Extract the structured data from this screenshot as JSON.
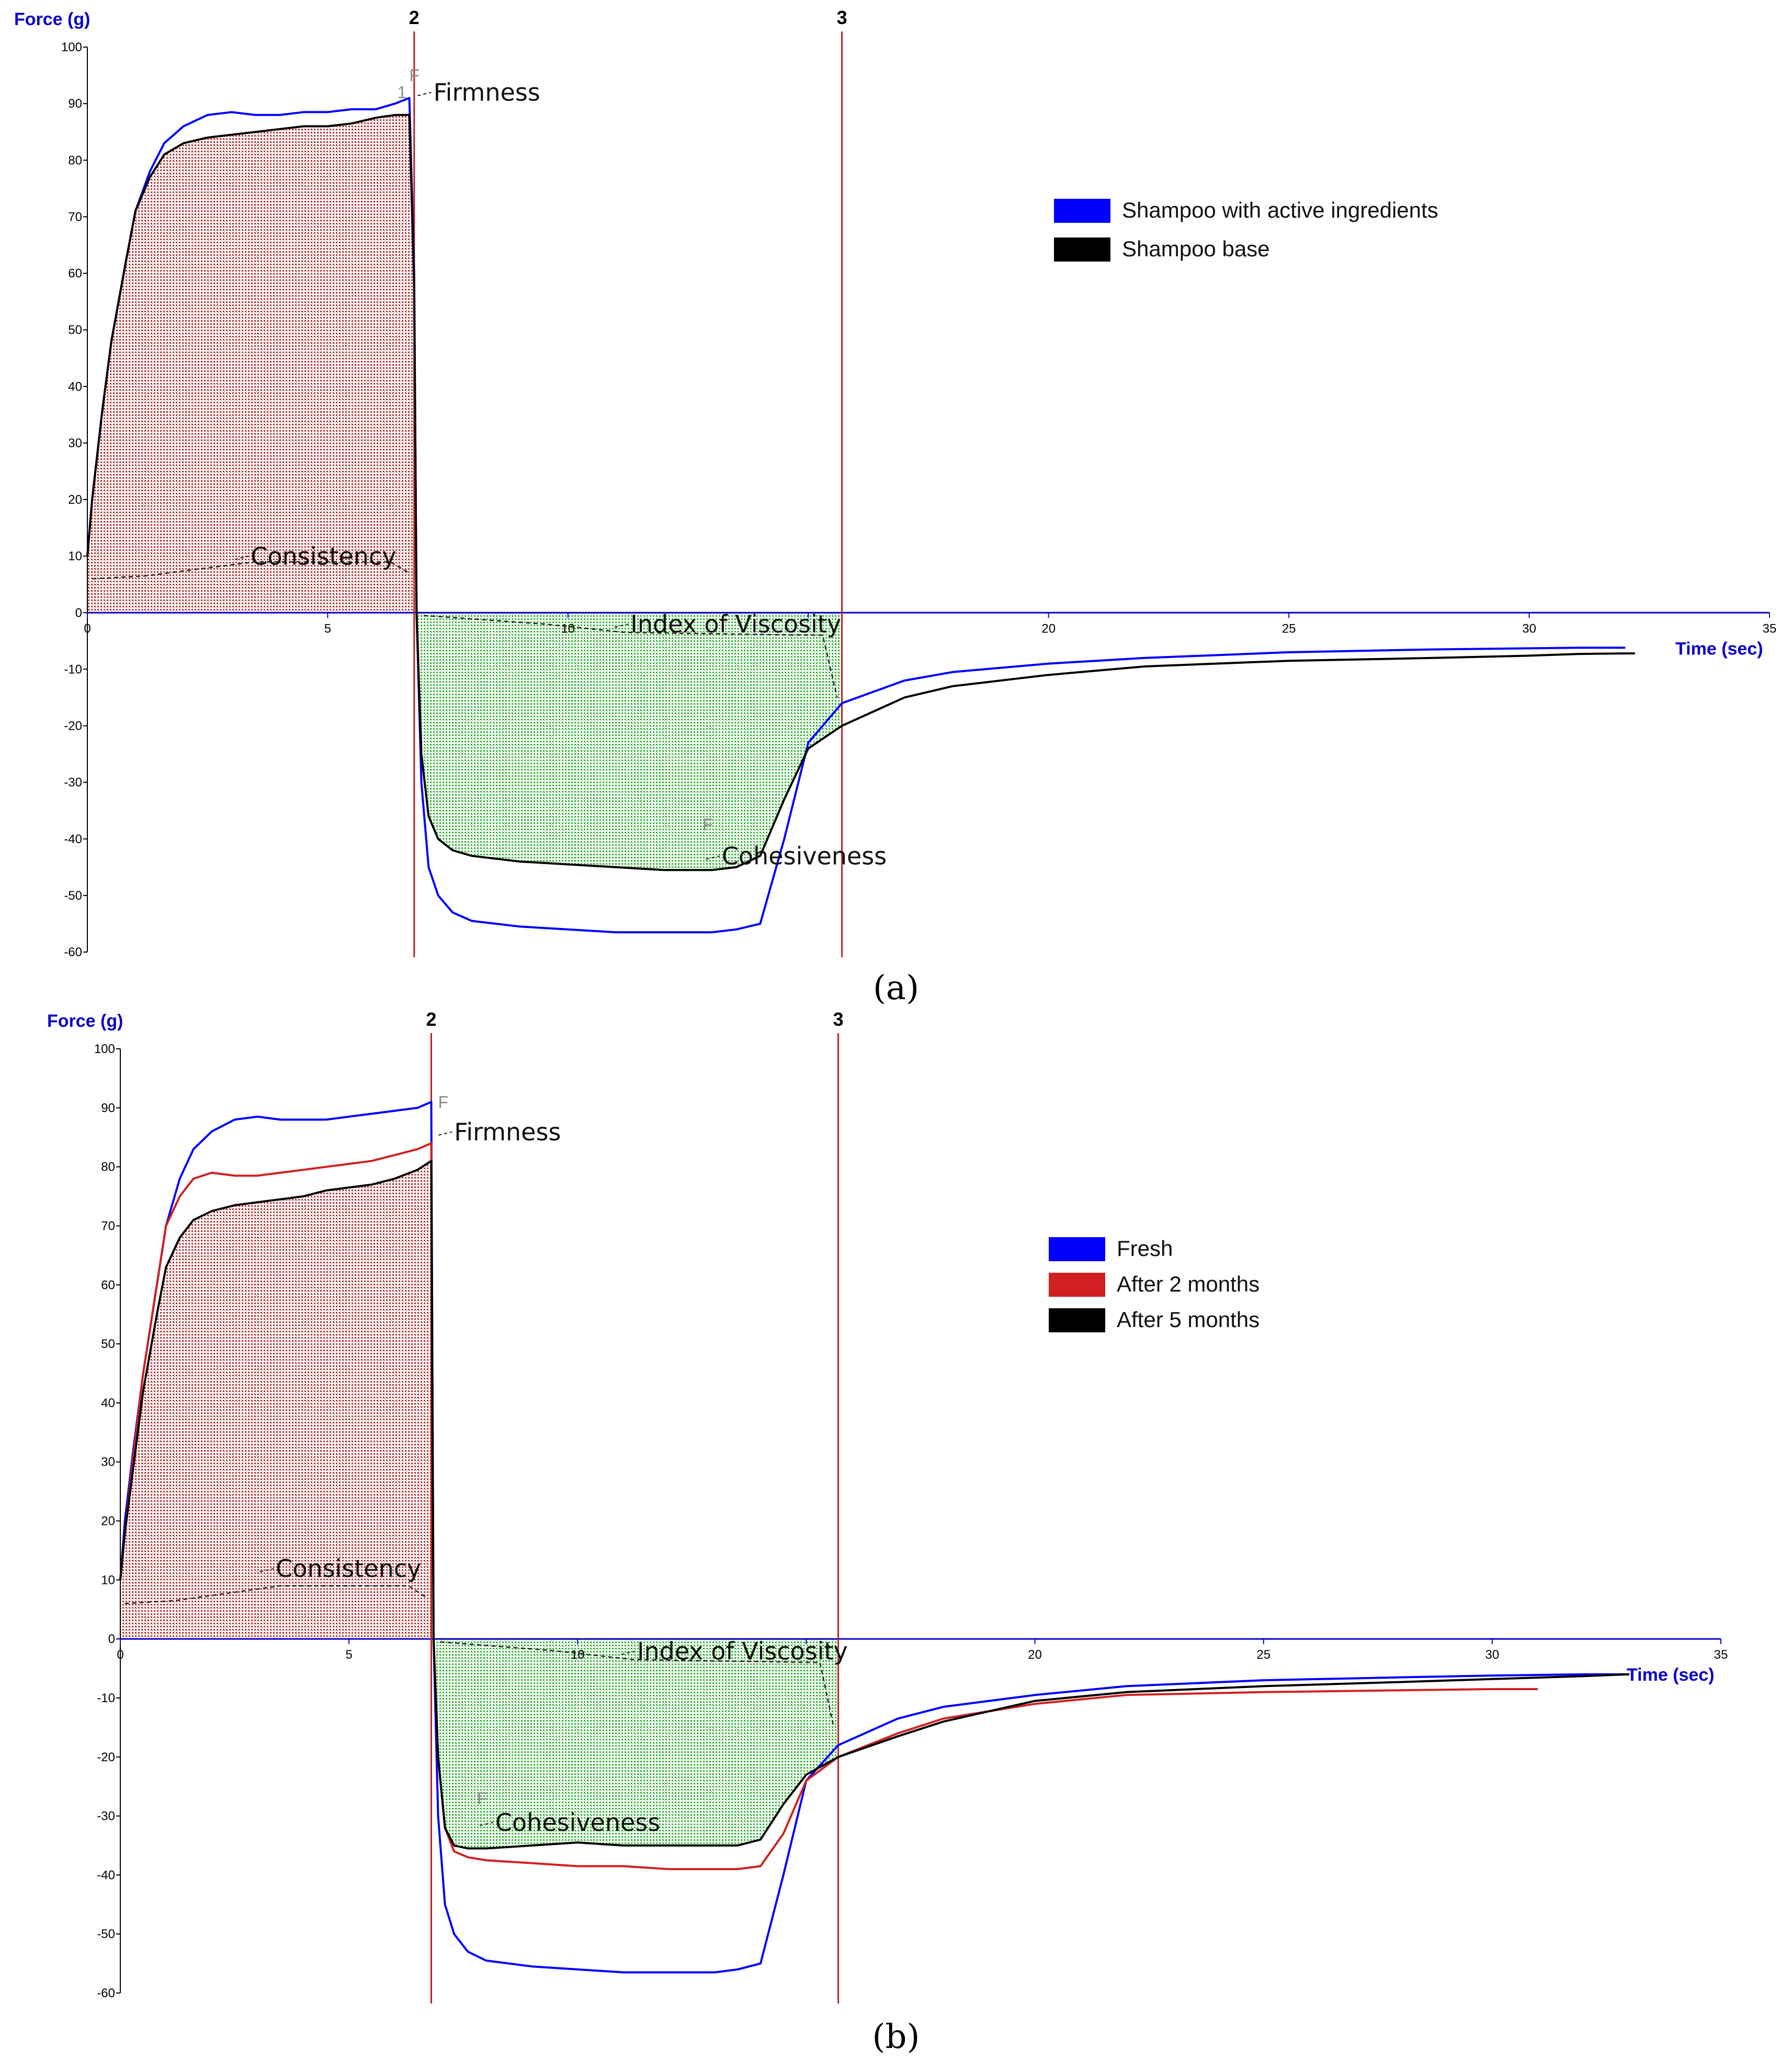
{
  "chart_data": [
    {
      "type": "line",
      "panel_label": "(a)",
      "ylabel": "Force (g)",
      "xlabel": "Time (sec)",
      "xlim": [
        0,
        35
      ],
      "ylim": [
        -60,
        100
      ],
      "x_ticks": [
        0,
        5,
        10,
        15,
        20,
        25,
        30,
        35
      ],
      "x_tick_labels": [
        "0",
        "5",
        "10",
        "",
        "20",
        "25",
        "30",
        "35"
      ],
      "y_ticks": [
        100,
        90,
        80,
        70,
        60,
        50,
        40,
        30,
        20,
        10,
        0,
        -10,
        -20,
        -30,
        -40,
        -50,
        -60
      ],
      "markers": [
        {
          "label": "2",
          "x": 6.8
        },
        {
          "label": "3",
          "x": 15.7
        }
      ],
      "legend_placement": "top-right",
      "annotations": [
        {
          "text": "Firmness",
          "x": 7.2,
          "y": 90.5
        },
        {
          "text": "Consistency",
          "x": 3.4,
          "y": 8.5
        },
        {
          "text": "Index of Viscosity",
          "x": 11.3,
          "y": -3.5
        },
        {
          "text": "Cohesiveness",
          "x": 13.2,
          "y": -44.5
        }
      ],
      "marker_glyphs": [
        {
          "text": "F",
          "x": 6.7,
          "y": 94
        },
        {
          "text": "1",
          "x": 6.45,
          "y": 91
        },
        {
          "text": "F",
          "x": 12.8,
          "y": -38.5
        }
      ],
      "shaded_regions": [
        {
          "kind": "positive",
          "color": "#b03030",
          "x": [
            0,
            6.8
          ]
        },
        {
          "kind": "negative",
          "color": "#30b030",
          "x": [
            6.8,
            15.7
          ]
        }
      ],
      "series": [
        {
          "name": "Shampoo with active ingredients",
          "color": "#0000ff",
          "x": [
            0,
            0.1,
            0.3,
            0.5,
            0.8,
            1.0,
            1.3,
            1.6,
            2.0,
            2.5,
            3.0,
            3.5,
            4.0,
            4.5,
            5.0,
            5.5,
            6.0,
            6.4,
            6.7,
            6.8,
            6.85,
            6.95,
            7.1,
            7.3,
            7.6,
            8.0,
            9.0,
            10.0,
            11.0,
            12.0,
            13.0,
            13.5,
            14.0,
            14.5,
            15.0,
            15.7,
            17.0,
            18.0,
            20.0,
            22.0,
            25.0,
            28.0,
            30.0,
            31.0,
            32.0
          ],
          "y": [
            10,
            20,
            35,
            48,
            62,
            71,
            78,
            83,
            86,
            88,
            88.5,
            88,
            88,
            88.5,
            88.5,
            89,
            89,
            90,
            91,
            60,
            0,
            -30,
            -45,
            -50,
            -53,
            -54.5,
            -55.5,
            -56,
            -56.5,
            -56.5,
            -56.5,
            -56,
            -55,
            -40,
            -23,
            -16,
            -12,
            -10.5,
            -9,
            -8,
            -7,
            -6.5,
            -6.3,
            -6.2,
            -6.2
          ]
        },
        {
          "name": "Shampoo base",
          "color": "#000000",
          "x": [
            0,
            0.1,
            0.3,
            0.5,
            0.8,
            1.0,
            1.3,
            1.6,
            2.0,
            2.5,
            3.0,
            3.5,
            4.0,
            4.5,
            5.0,
            5.5,
            6.0,
            6.4,
            6.7,
            6.8,
            6.85,
            6.95,
            7.1,
            7.3,
            7.6,
            8.0,
            9.0,
            10.0,
            11.0,
            12.0,
            13.0,
            13.5,
            14.0,
            14.5,
            15.0,
            15.7,
            17.0,
            18.0,
            20.0,
            22.0,
            25.0,
            28.0,
            30.0,
            31.0,
            32.0,
            32.2
          ],
          "y": [
            10,
            20,
            35,
            48,
            62,
            71,
            77,
            81,
            83,
            84,
            84.5,
            85,
            85.5,
            86,
            86,
            86.5,
            87.5,
            88,
            88,
            58,
            0,
            -25,
            -36,
            -40,
            -42,
            -43,
            -44,
            -44.5,
            -45,
            -45.5,
            -45.5,
            -45,
            -43,
            -33,
            -24,
            -20,
            -15,
            -13,
            -11,
            -9.5,
            -8.5,
            -8,
            -7.6,
            -7.3,
            -7.2,
            -7.2
          ]
        }
      ]
    },
    {
      "type": "line",
      "panel_label": "(b)",
      "ylabel": "Force (g)",
      "xlabel": "Time (sec)",
      "xlim": [
        0,
        35
      ],
      "ylim": [
        -60,
        100
      ],
      "x_ticks": [
        0,
        5,
        10,
        15,
        20,
        25,
        30,
        35
      ],
      "x_tick_labels": [
        "0",
        "5",
        "10",
        "",
        "20",
        "25",
        "30",
        "35"
      ],
      "y_ticks": [
        100,
        90,
        80,
        70,
        60,
        50,
        40,
        30,
        20,
        10,
        0,
        -10,
        -20,
        -30,
        -40,
        -50,
        -60
      ],
      "markers": [
        {
          "label": "2",
          "x": 6.8
        },
        {
          "label": "3",
          "x": 15.7
        }
      ],
      "legend_placement": "top-right",
      "annotations": [
        {
          "text": "Firmness",
          "x": 7.3,
          "y": 84.5
        },
        {
          "text": "Consistency",
          "x": 3.4,
          "y": 10.5
        },
        {
          "text": "Index of Viscosity",
          "x": 11.3,
          "y": -3.5
        },
        {
          "text": "Cohesiveness",
          "x": 8.2,
          "y": -32.5
        }
      ],
      "marker_glyphs": [
        {
          "text": "F",
          "x": 6.95,
          "y": 90
        },
        {
          "text": "F",
          "x": 7.8,
          "y": -28
        }
      ],
      "shaded_regions": [
        {
          "kind": "positive",
          "color": "#b03030",
          "x": [
            0,
            6.8
          ]
        },
        {
          "kind": "negative",
          "color": "#30b030",
          "x": [
            6.8,
            15.7
          ]
        }
      ],
      "series": [
        {
          "name": "Fresh",
          "color": "#0000ff",
          "x": [
            0,
            0.1,
            0.3,
            0.5,
            0.8,
            1.0,
            1.3,
            1.6,
            2.0,
            2.5,
            3.0,
            3.5,
            4.0,
            4.5,
            5.0,
            5.5,
            6.0,
            6.5,
            6.8,
            6.85,
            6.95,
            7.1,
            7.3,
            7.6,
            8.0,
            9.0,
            10.0,
            11.0,
            12.0,
            13.0,
            13.5,
            14.0,
            14.5,
            15.0,
            15.7,
            17.0,
            18.0,
            20.0,
            22.0,
            25.0,
            28.0,
            30.0,
            32.0,
            33.0
          ],
          "y": [
            10,
            20,
            33,
            45,
            60,
            70,
            78,
            83,
            86,
            88,
            88.5,
            88,
            88,
            88,
            88.5,
            89,
            89.5,
            90,
            91,
            0,
            -30,
            -45,
            -50,
            -53,
            -54.5,
            -55.5,
            -56,
            -56.5,
            -56.5,
            -56.5,
            -56,
            -55,
            -40,
            -24,
            -18,
            -13.5,
            -11.5,
            -9.5,
            -8,
            -7,
            -6.5,
            -6.2,
            -6.0,
            -6.0
          ]
        },
        {
          "name": "After 2 months",
          "color": "#d02020",
          "x": [
            0,
            0.1,
            0.3,
            0.5,
            0.8,
            1.0,
            1.3,
            1.6,
            2.0,
            2.5,
            3.0,
            3.5,
            4.0,
            4.5,
            5.0,
            5.5,
            6.0,
            6.5,
            6.8,
            6.85,
            6.95,
            7.1,
            7.3,
            7.6,
            8.0,
            9.0,
            10.0,
            11.0,
            12.0,
            13.0,
            13.5,
            14.0,
            14.5,
            15.0,
            15.7,
            17.0,
            18.0,
            20.0,
            22.0,
            25.0,
            28.0,
            30.0,
            31.0
          ],
          "y": [
            10,
            18,
            32,
            45,
            60,
            70,
            75,
            78,
            79,
            78.5,
            78.5,
            79,
            79.5,
            80,
            80.5,
            81,
            82,
            83,
            84,
            0,
            -20,
            -32,
            -36,
            -37,
            -37.5,
            -38,
            -38.5,
            -38.5,
            -39,
            -39,
            -39,
            -38.5,
            -33,
            -24,
            -20,
            -16,
            -13.5,
            -11,
            -9.5,
            -9,
            -8.7,
            -8.5,
            -8.5
          ]
        },
        {
          "name": "After 5 months",
          "color": "#000000",
          "x": [
            0,
            0.1,
            0.3,
            0.5,
            0.8,
            1.0,
            1.3,
            1.6,
            2.0,
            2.5,
            3.0,
            3.5,
            4.0,
            4.5,
            5.0,
            5.5,
            6.0,
            6.5,
            6.8,
            6.85,
            6.95,
            7.1,
            7.3,
            7.6,
            8.0,
            9.0,
            10.0,
            11.0,
            12.0,
            13.0,
            13.5,
            14.0,
            14.5,
            15.0,
            15.7,
            17.0,
            18.0,
            20.0,
            22.0,
            25.0,
            28.0,
            30.0,
            32.0,
            33.0
          ],
          "y": [
            10,
            18,
            30,
            42,
            55,
            63,
            68,
            71,
            72.5,
            73.5,
            74,
            74.5,
            75,
            76,
            76.5,
            77,
            78,
            79.5,
            81,
            0,
            -20,
            -32,
            -35,
            -35.5,
            -35.5,
            -35,
            -34.5,
            -35,
            -35,
            -35,
            -35,
            -34,
            -28,
            -23,
            -20,
            -16.5,
            -14,
            -10.5,
            -9,
            -8,
            -7.3,
            -6.8,
            -6.3,
            -6.0
          ]
        }
      ]
    }
  ]
}
